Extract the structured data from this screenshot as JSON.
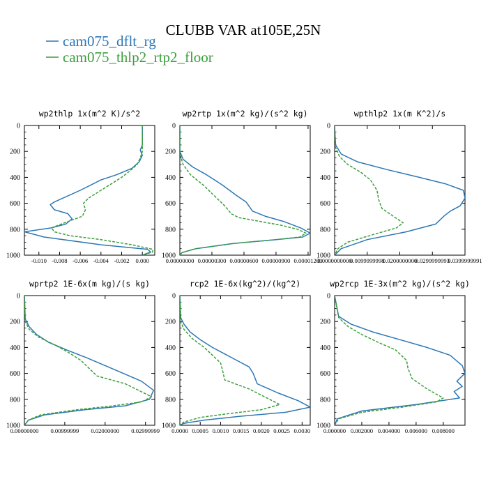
{
  "figure": {
    "title": "CLUBB VAR at105E,25N",
    "legend": [
      {
        "label": "cam075_dflt_rg",
        "color": "#2d77b5",
        "dash": "solid"
      },
      {
        "label": "cam075_thlp2_rtp2_floor",
        "color": "#3c9e3c",
        "dash": "dashed"
      }
    ]
  },
  "chart_data": [
    {
      "type": "line",
      "title": "wp2thlp  1x(m^2 K)/s^2",
      "xlim": [
        -0.0114,
        0.0012
      ],
      "ylim": [
        0,
        1000
      ],
      "y_inverted": true,
      "xticks": [
        -0.01,
        -0.008,
        -0.006,
        -0.004,
        -0.002,
        0.0
      ],
      "xtick_labels": [
        "-0.010",
        "-0.008",
        "-0.006",
        "-0.004",
        "-0.002",
        "0.000"
      ],
      "yticks": [
        0,
        200,
        400,
        600,
        800,
        1000
      ],
      "ytick_labels": [
        "0",
        "200",
        "400",
        "600",
        "800",
        "1000"
      ],
      "series": [
        {
          "name": "cam075_dflt_rg",
          "color": "#2d77b5",
          "dash": "solid",
          "x": [
            0.0,
            0.0,
            -0.0002,
            0.0,
            -0.0003,
            -0.001,
            -0.0025,
            -0.004,
            -0.006,
            -0.0085,
            -0.0089,
            -0.0085,
            -0.0072,
            -0.0068,
            -0.0074,
            -0.0088,
            -0.0114,
            -0.0095,
            -0.004,
            0.0005,
            0.0008,
            0.0
          ],
          "y": [
            0,
            150,
            190,
            230,
            280,
            330,
            380,
            420,
            500,
            590,
            610,
            650,
            680,
            720,
            760,
            790,
            820,
            860,
            920,
            955,
            975,
            1000
          ]
        },
        {
          "name": "cam075_thlp2_rtp2_floor",
          "color": "#3c9e3c",
          "dash": "dashed",
          "x": [
            0.0,
            0.0,
            -0.0002,
            -0.0005,
            -0.0012,
            -0.002,
            -0.003,
            -0.004,
            -0.0052,
            -0.0057,
            -0.0055,
            -0.0058,
            -0.0075,
            -0.0088,
            -0.0085,
            -0.007,
            -0.004,
            -0.001,
            0.001,
            0.001,
            0.0
          ],
          "y": [
            0,
            200,
            250,
            300,
            350,
            400,
            450,
            500,
            560,
            600,
            650,
            700,
            750,
            790,
            820,
            850,
            880,
            920,
            955,
            975,
            1000
          ]
        }
      ]
    },
    {
      "type": "line",
      "title": "wp2rtp  1x(m^2 kg)/(s^2 kg)",
      "xlim": [
        0,
        1.22e-05
      ],
      "ylim": [
        0,
        1000
      ],
      "y_inverted": true,
      "xticks": [
        0,
        3e-06,
        6e-06,
        9e-06,
        1.2e-05
      ],
      "xtick_labels": [
        "0.00000000",
        "0.00000300",
        "0.00000600",
        "0.00000900",
        "0.00001200"
      ],
      "yticks": [
        0,
        200,
        400,
        600,
        800,
        1000
      ],
      "ytick_labels": [
        "0",
        "200",
        "400",
        "600",
        "800",
        "1000"
      ],
      "series": [
        {
          "name": "cam075_dflt_rg",
          "color": "#2d77b5",
          "dash": "solid",
          "x": [
            0,
            0,
            3e-07,
            1.2e-06,
            2.5e-06,
            4e-06,
            5.3e-06,
            6.2e-06,
            6.8e-06,
            8e-06,
            9.7e-06,
            1.13e-05,
            1.22e-05,
            1.15e-05,
            9e-06,
            5e-06,
            1.5e-06,
            2e-07,
            0
          ],
          "y": [
            0,
            200,
            260,
            320,
            380,
            460,
            540,
            590,
            660,
            700,
            740,
            790,
            830,
            860,
            880,
            910,
            950,
            980,
            1000
          ]
        },
        {
          "name": "cam075_thlp2_rtp2_floor",
          "color": "#3c9e3c",
          "dash": "dashed",
          "x": [
            0,
            0,
            3e-07,
            1e-06,
            2.2e-06,
            3.2e-06,
            4.2e-06,
            4.8e-06,
            5.5e-06,
            7.5e-06,
            9.5e-06,
            1.1e-05,
            1.18e-05,
            1.12e-05,
            9e-06,
            5e-06,
            1.5e-06,
            2e-07,
            0
          ],
          "y": [
            0,
            220,
            300,
            380,
            460,
            540,
            620,
            680,
            710,
            740,
            770,
            800,
            830,
            860,
            880,
            910,
            950,
            980,
            1000
          ]
        }
      ]
    },
    {
      "type": "line",
      "title": "wpthlp2  1x(m K^2)/s",
      "xlim": [
        0,
        0.04
      ],
      "ylim": [
        0,
        1000
      ],
      "y_inverted": true,
      "xticks": [
        0,
        0.01,
        0.02,
        0.03,
        0.04
      ],
      "xtick_labels": [
        "0.0000000000",
        "0.0099999998",
        "0.0200000000",
        "0.0299999993",
        "0.0399999991"
      ],
      "yticks": [
        0,
        200,
        400,
        600,
        800,
        1000
      ],
      "ytick_labels": [
        "0",
        "200",
        "400",
        "600",
        "800",
        "1000"
      ],
      "series": [
        {
          "name": "cam075_dflt_rg",
          "color": "#2d77b5",
          "dash": "solid",
          "x": [
            0,
            0.0003,
            0.002,
            0.007,
            0.016,
            0.026,
            0.034,
            0.0395,
            0.04,
            0.0385,
            0.0355,
            0.0335,
            0.031,
            0.022,
            0.01,
            0.002,
            0
          ],
          "y": [
            0,
            150,
            220,
            280,
            340,
            400,
            450,
            500,
            560,
            620,
            660,
            700,
            760,
            820,
            880,
            950,
            1000
          ]
        },
        {
          "name": "cam075_thlp2_rtp2_floor",
          "color": "#3c9e3c",
          "dash": "dashed",
          "x": [
            0,
            0.0003,
            0.0015,
            0.004,
            0.008,
            0.011,
            0.013,
            0.0135,
            0.0145,
            0.018,
            0.021,
            0.019,
            0.012,
            0.004,
            0.001,
            0
          ],
          "y": [
            0,
            170,
            240,
            300,
            360,
            420,
            500,
            570,
            640,
            700,
            750,
            790,
            840,
            900,
            950,
            1000
          ]
        }
      ]
    },
    {
      "type": "line",
      "title": "wprtp2  1E-6x(m kg)/(s kg)",
      "xlim": [
        0,
        0.0323
      ],
      "ylim": [
        0,
        1000
      ],
      "y_inverted": true,
      "xticks": [
        0,
        0.01,
        0.02,
        0.03
      ],
      "xtick_labels": [
        "0.00000000",
        "0.00999999",
        "0.02000000",
        "0.02999999"
      ],
      "yticks": [
        0,
        200,
        400,
        600,
        800,
        1000
      ],
      "ytick_labels": [
        "0",
        "200",
        "400",
        "600",
        "800",
        "1000"
      ],
      "series": [
        {
          "name": "cam075_dflt_rg",
          "color": "#2d77b5",
          "dash": "solid",
          "x": [
            0,
            0.0002,
            0.0012,
            0.003,
            0.006,
            0.0105,
            0.0155,
            0.02,
            0.0245,
            0.029,
            0.032,
            0.031,
            0.025,
            0.015,
            0.005,
            0.001,
            0
          ],
          "y": [
            0,
            180,
            240,
            300,
            360,
            420,
            480,
            540,
            600,
            660,
            730,
            800,
            850,
            880,
            920,
            960,
            1000
          ]
        },
        {
          "name": "cam075_thlp2_rtp2_floor",
          "color": "#3c9e3c",
          "dash": "dashed",
          "x": [
            0,
            0.0002,
            0.0012,
            0.0035,
            0.0075,
            0.011,
            0.014,
            0.016,
            0.018,
            0.025,
            0.0315,
            0.029,
            0.022,
            0.013,
            0.004,
            0.001,
            0
          ],
          "y": [
            0,
            200,
            260,
            320,
            380,
            440,
            500,
            560,
            620,
            680,
            780,
            820,
            850,
            880,
            920,
            960,
            1000
          ]
        }
      ]
    },
    {
      "type": "line",
      "title": "rcp2  1E-6x(kg^2)/(kg^2)",
      "xlim": [
        0,
        0.0032
      ],
      "ylim": [
        0,
        1000
      ],
      "y_inverted": true,
      "xticks": [
        0,
        0.0005,
        0.001,
        0.0015,
        0.002,
        0.0025,
        0.003
      ],
      "xtick_labels": [
        "0.0000",
        "0.0005",
        "0.0010",
        "0.0015",
        "0.0020",
        "0.0025",
        "0.0030"
      ],
      "yticks": [
        0,
        200,
        400,
        600,
        800,
        1000
      ],
      "ytick_labels": [
        "0",
        "200",
        "400",
        "600",
        "800",
        "1000"
      ],
      "series": [
        {
          "name": "cam075_dflt_rg",
          "color": "#2d77b5",
          "dash": "solid",
          "x": [
            0,
            2e-05,
            0.0001,
            0.00025,
            0.0005,
            0.0008,
            0.0011,
            0.0014,
            0.0017,
            0.0018,
            0.0019,
            0.0024,
            0.0029,
            0.0032,
            0.0026,
            0.0015,
            0.0006,
            0.0001,
            0
          ],
          "y": [
            0,
            170,
            220,
            280,
            340,
            400,
            450,
            500,
            550,
            600,
            680,
            750,
            810,
            860,
            900,
            930,
            960,
            985,
            1000
          ]
        },
        {
          "name": "cam075_thlp2_rtp2_floor",
          "color": "#3c9e3c",
          "dash": "dashed",
          "x": [
            0,
            2e-05,
            0.0001,
            0.0003,
            0.0006,
            0.0008,
            0.001,
            0.00105,
            0.0011,
            0.0017,
            0.00245,
            0.002,
            0.0012,
            0.0005,
            0.0001,
            0
          ],
          "y": [
            0,
            200,
            260,
            330,
            400,
            460,
            520,
            580,
            650,
            720,
            840,
            880,
            910,
            940,
            975,
            1000
          ]
        }
      ]
    },
    {
      "type": "line",
      "title": "wp2rcp  1E-3x(m^2 kg)/(s^2 kg)",
      "xlim": [
        0,
        0.0096
      ],
      "ylim": [
        0,
        1000
      ],
      "y_inverted": true,
      "xticks": [
        0,
        0.002,
        0.004,
        0.006,
        0.008
      ],
      "xtick_labels": [
        "0.000000",
        "0.002000",
        "0.004000",
        "0.006000",
        "0.008000"
      ],
      "yticks": [
        0,
        200,
        400,
        600,
        800,
        1000
      ],
      "ytick_labels": [
        "0",
        "200",
        "400",
        "600",
        "800",
        "1000"
      ],
      "series": [
        {
          "name": "cam075_dflt_rg",
          "color": "#2d77b5",
          "dash": "solid",
          "x": [
            0,
            0.0003,
            0.0012,
            0.0028,
            0.0048,
            0.0068,
            0.0085,
            0.0094,
            0.0096,
            0.009,
            0.0094,
            0.0088,
            0.0092,
            0.006,
            0.002,
            0.0002,
            0
          ],
          "y": [
            0,
            160,
            220,
            280,
            340,
            400,
            460,
            540,
            600,
            660,
            700,
            740,
            790,
            840,
            890,
            950,
            1000
          ]
        },
        {
          "name": "cam075_thlp2_rtp2_floor",
          "color": "#3c9e3c",
          "dash": "dashed",
          "x": [
            0,
            0.0003,
            0.001,
            0.002,
            0.0032,
            0.0045,
            0.0053,
            0.0054,
            0.0057,
            0.0068,
            0.008,
            0.0075,
            0.005,
            0.002,
            0.0003,
            0
          ],
          "y": [
            0,
            170,
            240,
            300,
            360,
            420,
            500,
            560,
            640,
            720,
            790,
            820,
            860,
            900,
            950,
            1000
          ]
        }
      ]
    }
  ]
}
